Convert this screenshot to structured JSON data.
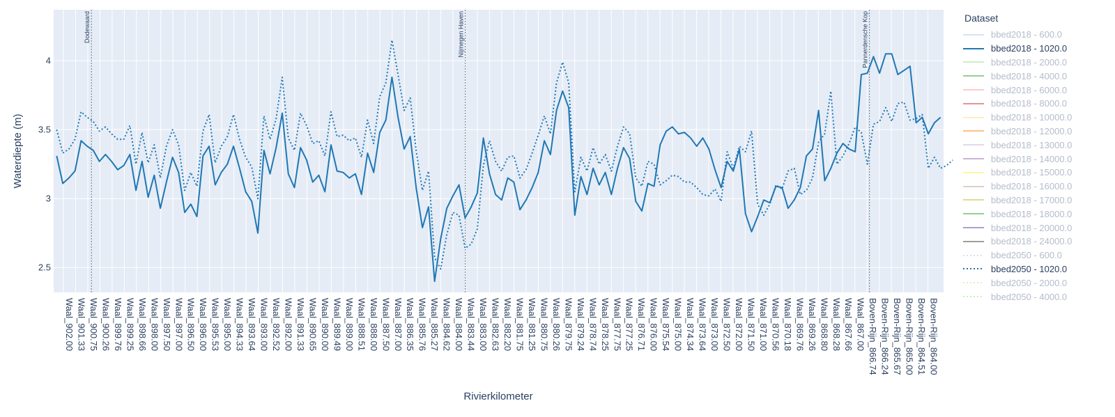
{
  "chart_data": {
    "type": "line",
    "xlabel": "Rivierkilometer",
    "ylabel": "Waterdiepte (m)",
    "ylim": [
      2.32,
      4.37
    ],
    "yticks": [
      2.5,
      3,
      3.5,
      4
    ],
    "ytick_labels": [
      "2.5",
      "3",
      "3.5",
      "4"
    ],
    "grid": true,
    "legend_title": "Dataset",
    "legend_position": "right",
    "x_tick_labels": [
      "Waal_902.00",
      "Waal_901.33",
      "Waal_900.75",
      "Waal_900.26",
      "Waal_899.76",
      "Waal_899.25",
      "Waal_898.66",
      "Waal_898.00",
      "Waal_897.50",
      "Waal_897.00",
      "Waal_896.50",
      "Waal_896.00",
      "Waal_895.53",
      "Waal_895.00",
      "Waal_894.33",
      "Waal_893.64",
      "Waal_893.00",
      "Waal_892.52",
      "Waal_892.00",
      "Waal_891.33",
      "Waal_890.65",
      "Waal_890.00",
      "Waal_889.49",
      "Waal_889.00",
      "Waal_888.51",
      "Waal_888.00",
      "Waal_887.50",
      "Waal_887.00",
      "Waal_886.35",
      "Waal_885.76",
      "Waal_885.27",
      "Waal_884.62",
      "Waal_884.00",
      "Waal_883.44",
      "Waal_883.00",
      "Waal_882.63",
      "Waal_882.20",
      "Waal_881.75",
      "Waal_881.25",
      "Waal_880.75",
      "Waal_880.26",
      "Waal_879.75",
      "Waal_879.24",
      "Waal_878.74",
      "Waal_878.25",
      "Waal_877.75",
      "Waal_877.25",
      "Waal_876.71",
      "Waal_876.00",
      "Waal_875.54",
      "Waal_875.00",
      "Waal_874.34",
      "Waal_873.64",
      "Waal_873.00",
      "Waal_872.50",
      "Waal_872.00",
      "Waal_871.50",
      "Waal_871.00",
      "Waal_870.56",
      "Waal_870.18",
      "Waal_869.76",
      "Waal_869.26",
      "Waal_868.80",
      "Waal_868.28",
      "Waal_867.66",
      "Waal_867.00",
      "Boven-Rijn_866.74",
      "Boven-Rijn_866.24",
      "Boven-Rijn_865.67",
      "Boven-Rijn_865.00",
      "Boven-Rijn_864.51",
      "Boven-Rijn_864.00"
    ],
    "vertical_markers": [
      {
        "label": "Dodewaard",
        "x_index": 2.3
      },
      {
        "label": "Nijmegen Haven",
        "x_index": 33.0
      },
      {
        "label": "Pannerdensche Kop",
        "x_index": 66.2
      }
    ],
    "series": [
      {
        "name": "bbed2018 - 1020.0",
        "color": "#1f77b4",
        "dash": "solid",
        "values": [
          3.31,
          3.11,
          3.15,
          3.2,
          3.42,
          3.38,
          3.35,
          3.27,
          3.32,
          3.27,
          3.21,
          3.24,
          3.32,
          3.06,
          3.27,
          3.01,
          3.17,
          2.93,
          3.12,
          3.3,
          3.19,
          2.9,
          2.96,
          2.87,
          3.31,
          3.38,
          3.1,
          3.19,
          3.25,
          3.38,
          3.22,
          3.05,
          2.98,
          2.75,
          3.35,
          3.18,
          3.37,
          3.62,
          3.18,
          3.08,
          3.37,
          3.28,
          3.12,
          3.17,
          3.05,
          3.39,
          3.2,
          3.19,
          3.15,
          3.18,
          3.03,
          3.33,
          3.19,
          3.48,
          3.57,
          3.88,
          3.59,
          3.36,
          3.45,
          3.07,
          2.79,
          2.94,
          2.4,
          2.71,
          2.93,
          3.02,
          3.1,
          2.86,
          2.94,
          3.04,
          3.44,
          3.18,
          3.03,
          2.99,
          3.15,
          3.12,
          2.92,
          2.99,
          3.08,
          3.19,
          3.42,
          3.32,
          3.64,
          3.78,
          3.66,
          2.88,
          3.16,
          3.03,
          3.22,
          3.1,
          3.19,
          3.03,
          3.22,
          3.37,
          3.29,
          2.98,
          2.91,
          3.11,
          3.09,
          3.39,
          3.49,
          3.52,
          3.47,
          3.48,
          3.44,
          3.38,
          3.44,
          3.36,
          3.21,
          3.08,
          3.27,
          3.2,
          3.36,
          2.89,
          2.76,
          2.87,
          2.99,
          2.97,
          3.09,
          3.08,
          2.93,
          2.99,
          3.08,
          3.31,
          3.36,
          3.64,
          3.13,
          3.22,
          3.33,
          3.4,
          3.36,
          3.34,
          3.9,
          3.91,
          4.03,
          3.91,
          4.05,
          4.05,
          3.9,
          3.93,
          3.96,
          3.55,
          3.59,
          3.47,
          3.55,
          3.59
        ]
      },
      {
        "name": "bbed2050 - 1020.0",
        "color": "#1f77b4",
        "dash": "dotted",
        "values": [
          3.5,
          3.33,
          3.36,
          3.43,
          3.63,
          3.59,
          3.56,
          3.49,
          3.52,
          3.47,
          3.43,
          3.43,
          3.53,
          3.25,
          3.48,
          3.26,
          3.39,
          3.15,
          3.38,
          3.5,
          3.39,
          3.06,
          3.19,
          3.09,
          3.49,
          3.61,
          3.26,
          3.38,
          3.45,
          3.61,
          3.43,
          3.3,
          3.23,
          3.0,
          3.6,
          3.43,
          3.58,
          3.88,
          3.44,
          3.35,
          3.62,
          3.53,
          3.4,
          3.42,
          3.31,
          3.63,
          3.45,
          3.46,
          3.42,
          3.44,
          3.3,
          3.57,
          3.4,
          3.74,
          3.84,
          4.15,
          3.9,
          3.64,
          3.73,
          3.34,
          3.06,
          3.2,
          2.57,
          2.49,
          2.74,
          2.9,
          2.88,
          2.64,
          2.67,
          2.78,
          3.24,
          3.42,
          3.27,
          3.2,
          3.3,
          3.31,
          3.15,
          3.21,
          3.33,
          3.46,
          3.6,
          3.47,
          3.84,
          3.99,
          3.84,
          3.05,
          3.3,
          3.2,
          3.37,
          3.25,
          3.32,
          3.2,
          3.38,
          3.52,
          3.47,
          3.15,
          3.09,
          3.27,
          3.25,
          3.1,
          3.13,
          3.17,
          3.16,
          3.12,
          3.12,
          3.08,
          3.03,
          3.02,
          3.07,
          2.98,
          3.34,
          3.22,
          3.38,
          3.34,
          3.49,
          2.96,
          2.88,
          2.96,
          3.1,
          3.07,
          3.2,
          3.22,
          3.03,
          3.06,
          3.15,
          3.41,
          3.47,
          3.78,
          3.25,
          3.31,
          3.4,
          3.52,
          3.48,
          3.25,
          3.54,
          3.56,
          3.66,
          3.56,
          3.69,
          3.7,
          3.57,
          3.58,
          3.61,
          3.22,
          3.3,
          3.22,
          3.24,
          3.28
        ]
      }
    ]
  },
  "legend": {
    "items": [
      {
        "label": "bbed2018 - 600.0",
        "color": "#aec7e8",
        "dash": "solid",
        "active": false
      },
      {
        "label": "bbed2018 - 1020.0",
        "color": "#1f77b4",
        "dash": "solid",
        "active": true
      },
      {
        "label": "bbed2018 - 2000.0",
        "color": "#98df8a",
        "dash": "solid",
        "active": false
      },
      {
        "label": "bbed2018 - 4000.0",
        "color": "#2ca02c",
        "dash": "solid",
        "active": false
      },
      {
        "label": "bbed2018 - 6000.0",
        "color": "#ff9896",
        "dash": "solid",
        "active": false
      },
      {
        "label": "bbed2018 - 8000.0",
        "color": "#d62728",
        "dash": "solid",
        "active": false
      },
      {
        "label": "bbed2018 - 10000.0",
        "color": "#ffdd88",
        "dash": "solid",
        "active": false
      },
      {
        "label": "bbed2018 - 12000.0",
        "color": "#ff7f0e",
        "dash": "solid",
        "active": false
      },
      {
        "label": "bbed2018 - 13000.0",
        "color": "#c5b0d5",
        "dash": "solid",
        "active": false
      },
      {
        "label": "bbed2018 - 14000.0",
        "color": "#9467bd",
        "dash": "solid",
        "active": false
      },
      {
        "label": "bbed2018 - 15000.0",
        "color": "#f5f542",
        "dash": "solid",
        "active": false
      },
      {
        "label": "bbed2018 - 16000.0",
        "color": "#c49c94",
        "dash": "solid",
        "active": false
      },
      {
        "label": "bbed2018 - 17000.0",
        "color": "#bcbd22",
        "dash": "solid",
        "active": false
      },
      {
        "label": "bbed2018 - 18000.0",
        "color": "#2ca02c",
        "dash": "solid",
        "active": false
      },
      {
        "label": "bbed2018 - 20000.0",
        "color": "#5a3fb0",
        "dash": "solid",
        "active": false
      },
      {
        "label": "bbed2018 - 24000.0",
        "color": "#3f3f3f",
        "dash": "solid",
        "active": false
      },
      {
        "label": "bbed2050 - 600.0",
        "color": "#aec7e8",
        "dash": "dotted",
        "active": false
      },
      {
        "label": "bbed2050 - 1020.0",
        "color": "#1f77b4",
        "dash": "dotted",
        "active": true
      },
      {
        "label": "bbed2050 - 2000.0",
        "color": "#dbdb8d",
        "dash": "dotted",
        "active": false
      },
      {
        "label": "bbed2050 - 4000.0",
        "color": "#98df8a",
        "dash": "dotted",
        "active": false
      }
    ]
  }
}
